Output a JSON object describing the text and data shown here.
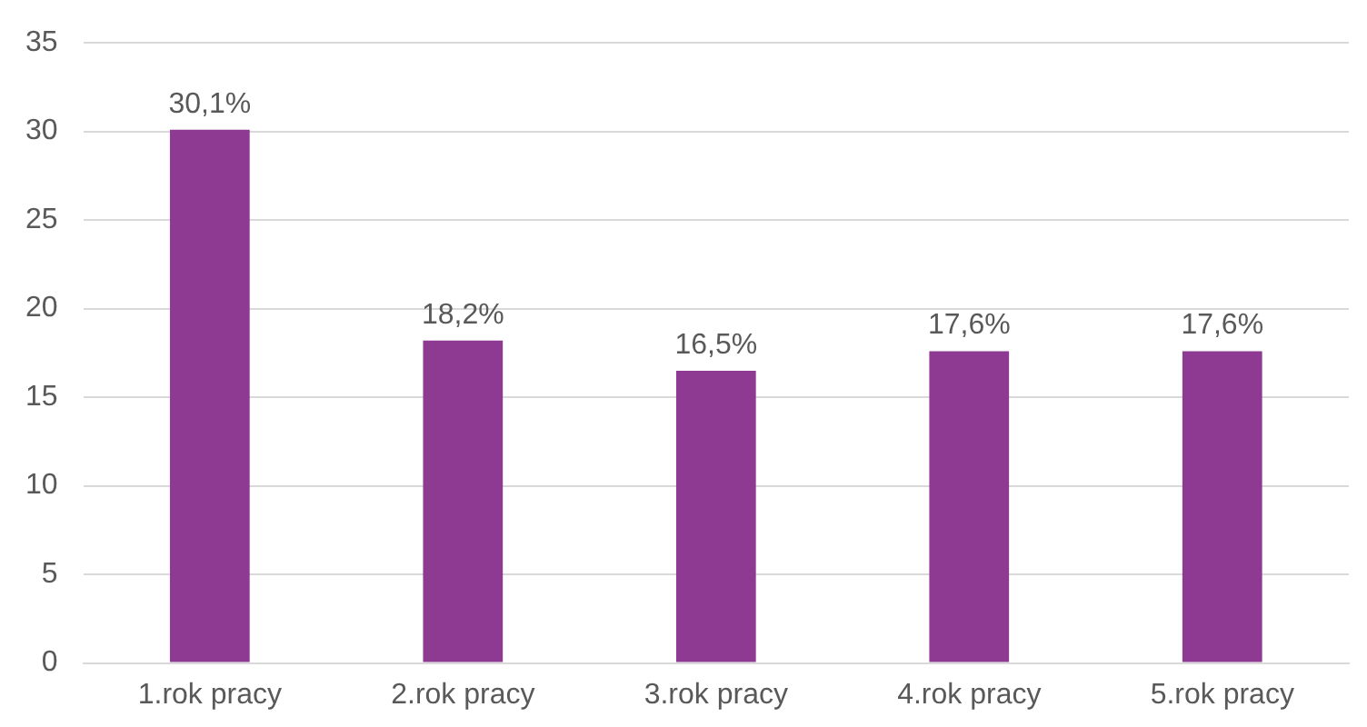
{
  "chart_data": {
    "type": "bar",
    "categories": [
      "1.rok pracy",
      "2.rok pracy",
      "3.rok pracy",
      "4.rok pracy",
      "5.rok pracy"
    ],
    "values": [
      30.1,
      18.2,
      16.5,
      17.6,
      17.6
    ],
    "value_labels": [
      "30,1%",
      "18,2%",
      "16,5%",
      "17,6%",
      "17,6%"
    ],
    "color": "#8e3a93",
    "ylim": [
      0,
      35
    ],
    "yticks": [
      0,
      5,
      10,
      15,
      20,
      25,
      30,
      35
    ],
    "grid": "y",
    "legend": false
  }
}
